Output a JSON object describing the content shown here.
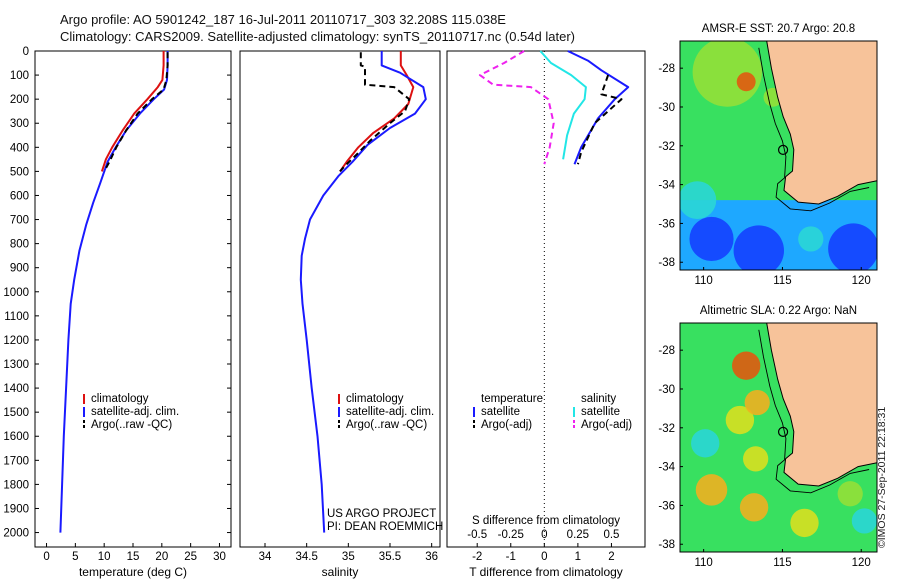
{
  "header": {
    "line1": "Argo profile: AO 5901242_187 16-Jul-2011 20110717_303 32.208S 115.038E",
    "line2": "Climatology: CARS2009. Satellite-adjusted climatology: synTS_20110717.nc (0.54d later)"
  },
  "stamp": "©IMOS 27-Sep-2011 22:18:31",
  "colors": {
    "climatology": "#dd1111",
    "satellite": "#1a1aff",
    "argo": "#000000",
    "salinity_satellite": "#22e6e6",
    "salinity_argo": "#ee22ee",
    "land": "#f7c39a"
  },
  "chart_data": [
    {
      "type": "line",
      "id": "temperature",
      "xlabel": "temperature (deg C)",
      "ylabel": "",
      "xlim": [
        -2,
        32
      ],
      "ylim": [
        2060,
        0
      ],
      "xticks": [
        0,
        5,
        10,
        15,
        20,
        25,
        30
      ],
      "yticks": [
        0,
        100,
        200,
        300,
        400,
        500,
        600,
        700,
        800,
        900,
        1000,
        1100,
        1200,
        1300,
        1400,
        1500,
        1600,
        1700,
        1800,
        1900,
        2000
      ],
      "legend": {
        "position": "lower-middle",
        "entries": [
          "climatology",
          "satellite-adj. clim.",
          "Argo(..raw -QC)"
        ]
      },
      "series": [
        {
          "name": "climatology",
          "color": "#dd1111",
          "dash": "solid",
          "points": [
            [
              20.3,
              0
            ],
            [
              20.3,
              60
            ],
            [
              20.1,
              120
            ],
            [
              19.3,
              150
            ],
            [
              17.5,
              200
            ],
            [
              15.2,
              260
            ],
            [
              13.2,
              330
            ],
            [
              11.4,
              400
            ],
            [
              10.3,
              450
            ],
            [
              9.6,
              500
            ]
          ]
        },
        {
          "name": "satellite-adj. clim.",
          "color": "#1a1aff",
          "dash": "solid",
          "points": [
            [
              21.0,
              0
            ],
            [
              21.0,
              60
            ],
            [
              20.9,
              120
            ],
            [
              20.4,
              160
            ],
            [
              18.6,
              200
            ],
            [
              16.2,
              260
            ],
            [
              13.8,
              330
            ],
            [
              12.0,
              400
            ],
            [
              10.6,
              460
            ],
            [
              9.3,
              550
            ],
            [
              8.1,
              630
            ],
            [
              6.9,
              720
            ],
            [
              5.7,
              830
            ],
            [
              4.8,
              950
            ],
            [
              4.2,
              1050
            ],
            [
              3.8,
              1200
            ],
            [
              3.4,
              1400
            ],
            [
              3.0,
              1600
            ],
            [
              2.7,
              1800
            ],
            [
              2.4,
              2000
            ]
          ]
        },
        {
          "name": "Argo(..raw -QC)",
          "color": "#000000",
          "dash": "dashed",
          "points": [
            [
              21.0,
              5
            ],
            [
              21.0,
              60
            ],
            [
              20.8,
              120
            ],
            [
              20.3,
              160
            ],
            [
              18.3,
              200
            ],
            [
              15.8,
              260
            ],
            [
              13.8,
              330
            ],
            [
              12.1,
              400
            ],
            [
              10.9,
              460
            ],
            [
              10.0,
              500
            ]
          ]
        }
      ],
      "annotations": []
    },
    {
      "type": "line",
      "id": "salinity",
      "xlabel": "salinity",
      "ylabel": "",
      "xlim": [
        33.7,
        36.1
      ],
      "ylim": [
        2060,
        0
      ],
      "xticks": [
        34,
        34.5,
        35,
        35.5,
        36
      ],
      "yticks": [],
      "legend": {
        "position": "lower-right",
        "entries": [
          "climatology",
          "satellite-adj. clim.",
          "Argo(..raw -QC)"
        ]
      },
      "series": [
        {
          "name": "climatology",
          "color": "#dd1111",
          "dash": "solid",
          "points": [
            [
              35.63,
              0
            ],
            [
              35.63,
              60
            ],
            [
              35.7,
              100
            ],
            [
              35.78,
              150
            ],
            [
              35.72,
              220
            ],
            [
              35.55,
              280
            ],
            [
              35.3,
              340
            ],
            [
              35.12,
              400
            ],
            [
              34.98,
              460
            ],
            [
              34.9,
              500
            ]
          ]
        },
        {
          "name": "satellite-adj. clim.",
          "color": "#1a1aff",
          "dash": "solid",
          "points": [
            [
              35.4,
              0
            ],
            [
              35.4,
              60
            ],
            [
              35.62,
              90
            ],
            [
              35.9,
              150
            ],
            [
              35.93,
              200
            ],
            [
              35.8,
              260
            ],
            [
              35.5,
              320
            ],
            [
              35.23,
              390
            ],
            [
              35.05,
              460
            ],
            [
              34.88,
              520
            ],
            [
              34.7,
              600
            ],
            [
              34.54,
              700
            ],
            [
              34.48,
              780
            ],
            [
              34.44,
              850
            ],
            [
              34.43,
              950
            ],
            [
              34.45,
              1050
            ],
            [
              34.5,
              1200
            ],
            [
              34.56,
              1400
            ],
            [
              34.63,
              1600
            ],
            [
              34.68,
              1800
            ],
            [
              34.71,
              2000
            ]
          ]
        },
        {
          "name": "Argo(..raw -QC)",
          "color": "#000000",
          "dash": "dashed",
          "points": [
            [
              35.15,
              5
            ],
            [
              35.15,
              60
            ],
            [
              35.2,
              65
            ],
            [
              35.2,
              140
            ],
            [
              35.55,
              150
            ],
            [
              35.73,
              200
            ],
            [
              35.68,
              250
            ],
            [
              35.5,
              300
            ],
            [
              35.27,
              370
            ],
            [
              35.1,
              430
            ],
            [
              34.95,
              480
            ],
            [
              34.9,
              500
            ]
          ]
        }
      ],
      "annotations": [
        "US ARGO PROJECT",
        "PI: DEAN ROEMMICH"
      ]
    },
    {
      "type": "line",
      "id": "difference",
      "xlabel": "T difference from climatology",
      "xlabel_top": "S difference from climatology",
      "ylabel": "",
      "xlim": [
        -2.9,
        3.0
      ],
      "ylim": [
        2060,
        0
      ],
      "xticks": [
        -2,
        -1,
        0,
        1,
        2
      ],
      "xticks_s": [
        "-0.5",
        "-0.25",
        "0",
        "0.25",
        "0.5"
      ],
      "xticks_s_values": [
        -0.5,
        -0.25,
        0,
        0.25,
        0.5
      ],
      "yticks": [],
      "legend": {
        "position": "lower-middle",
        "headers": [
          "temperature",
          "salinity"
        ],
        "entries": [
          "satellite",
          "Argo(-adj)",
          "satellite",
          "Argo(-adj)"
        ]
      },
      "series": [
        {
          "name": "satellite",
          "group": "temperature",
          "color": "#1a1aff",
          "dash": "solid",
          "unit": "T",
          "points": [
            [
              0.7,
              0
            ],
            [
              1.3,
              40
            ],
            [
              1.7,
              80
            ],
            [
              2.5,
              150
            ],
            [
              2.1,
              200
            ],
            [
              1.6,
              280
            ],
            [
              1.1,
              400
            ],
            [
              0.9,
              470
            ]
          ]
        },
        {
          "name": "Argo(-adj)",
          "group": "temperature",
          "color": "#000000",
          "dash": "dashed",
          "unit": "T",
          "points": [
            [
              1.9,
              100
            ],
            [
              1.7,
              180
            ],
            [
              2.3,
              200
            ],
            [
              1.5,
              300
            ],
            [
              1.3,
              360
            ],
            [
              1.1,
              420
            ],
            [
              1.0,
              470
            ]
          ]
        },
        {
          "name": "satellite",
          "group": "salinity",
          "color": "#22e6e6",
          "dash": "solid",
          "unit": "S",
          "points": [
            [
              -0.03,
              0
            ],
            [
              0.05,
              50
            ],
            [
              0.2,
              100
            ],
            [
              0.31,
              150
            ],
            [
              0.3,
              200
            ],
            [
              0.22,
              260
            ],
            [
              0.17,
              350
            ],
            [
              0.14,
              450
            ]
          ]
        },
        {
          "name": "Argo(-adj)",
          "group": "salinity",
          "color": "#ee22ee",
          "dash": "dashed",
          "unit": "S",
          "points": [
            [
              -0.15,
              0
            ],
            [
              -0.3,
              50
            ],
            [
              -0.48,
              100
            ],
            [
              -0.38,
              140
            ],
            [
              -0.1,
              150
            ],
            [
              0.03,
              200
            ],
            [
              0.07,
              300
            ],
            [
              0.04,
              400
            ],
            [
              0.0,
              470
            ]
          ]
        }
      ],
      "annotations": []
    },
    {
      "type": "heatmap",
      "id": "sst-map",
      "title": "AMSR-E SST: 20.7 Argo: 20.8",
      "xlim": [
        108.5,
        121
      ],
      "ylim": [
        -38.4,
        -26.6
      ],
      "xticks": [
        110,
        115,
        120
      ],
      "yticks": [
        -28,
        -30,
        -32,
        -34,
        -36,
        -38
      ],
      "colormap": [
        "#1440ff",
        "#1ea8ff",
        "#2ad6d6",
        "#38e060",
        "#94e038",
        "#d8e020",
        "#f0b020",
        "#e05a10"
      ],
      "marker": {
        "lon": 115.04,
        "lat": -32.21
      },
      "coast": [
        [
          114.0,
          -26.6
        ],
        [
          114.3,
          -28.0
        ],
        [
          114.7,
          -29.5
        ],
        [
          115.05,
          -30.5
        ],
        [
          115.5,
          -31.4
        ],
        [
          115.72,
          -32.2
        ],
        [
          115.64,
          -33.3
        ],
        [
          115.2,
          -33.6
        ],
        [
          115.1,
          -34.3
        ],
        [
          116.0,
          -34.9
        ],
        [
          117.3,
          -35.0
        ],
        [
          118.5,
          -34.6
        ],
        [
          119.8,
          -34.0
        ],
        [
          121,
          -33.8
        ]
      ],
      "blobs": [
        {
          "lon": 111.5,
          "lat": -28.2,
          "v": 0.62,
          "r": 2.2
        },
        {
          "lon": 112.7,
          "lat": -28.7,
          "v": 0.95,
          "r": 0.6
        },
        {
          "lon": 111.0,
          "lat": -32.0,
          "v": 0.42,
          "r": 1.6
        },
        {
          "lon": 109.6,
          "lat": -34.8,
          "v": 0.22,
          "r": 1.2
        },
        {
          "lon": 110.5,
          "lat": -36.8,
          "v": 0.02,
          "r": 1.4
        },
        {
          "lon": 113.5,
          "lat": -37.4,
          "v": 0.05,
          "r": 1.6
        },
        {
          "lon": 116.8,
          "lat": -36.8,
          "v": 0.32,
          "r": 0.8
        },
        {
          "lon": 119.5,
          "lat": -37.3,
          "v": 0.0,
          "r": 1.6
        },
        {
          "lon": 114.4,
          "lat": -29.5,
          "v": 0.62,
          "r": 0.6
        }
      ]
    },
    {
      "type": "heatmap",
      "id": "sla-map",
      "title": "Altimetric SLA: 0.22 Argo: NaN",
      "xlim": [
        108.5,
        121
      ],
      "ylim": [
        -38.4,
        -26.6
      ],
      "xticks": [
        110,
        115,
        120
      ],
      "yticks": [
        -28,
        -30,
        -32,
        -34,
        -36,
        -38
      ],
      "colormap": [
        "#1440ff",
        "#1ea8ff",
        "#2ad6d6",
        "#38e060",
        "#94e038",
        "#d8e020",
        "#f0b020",
        "#e05a10"
      ],
      "marker": {
        "lon": 115.04,
        "lat": -32.21
      },
      "coast": [
        [
          114.0,
          -26.6
        ],
        [
          114.3,
          -28.0
        ],
        [
          114.7,
          -29.5
        ],
        [
          115.05,
          -30.5
        ],
        [
          115.5,
          -31.4
        ],
        [
          115.72,
          -32.2
        ],
        [
          115.64,
          -33.3
        ],
        [
          115.2,
          -33.6
        ],
        [
          115.1,
          -34.3
        ],
        [
          116.0,
          -34.9
        ],
        [
          117.3,
          -35.0
        ],
        [
          118.5,
          -34.6
        ],
        [
          119.8,
          -34.0
        ],
        [
          121,
          -33.8
        ]
      ],
      "blobs": [
        {
          "lon": 110.0,
          "lat": -28.2,
          "v": 0.38,
          "r": 0.9
        },
        {
          "lon": 112.7,
          "lat": -28.8,
          "v": 0.95,
          "r": 0.9
        },
        {
          "lon": 110.1,
          "lat": -32.8,
          "v": 0.35,
          "r": 0.9
        },
        {
          "lon": 112.3,
          "lat": -31.6,
          "v": 0.78,
          "r": 0.9
        },
        {
          "lon": 113.4,
          "lat": -30.7,
          "v": 0.84,
          "r": 0.8
        },
        {
          "lon": 110.5,
          "lat": -35.2,
          "v": 0.8,
          "r": 1.0
        },
        {
          "lon": 113.3,
          "lat": -33.6,
          "v": 0.65,
          "r": 0.8
        },
        {
          "lon": 113.2,
          "lat": -36.1,
          "v": 0.82,
          "r": 0.9
        },
        {
          "lon": 116.4,
          "lat": -36.9,
          "v": 0.68,
          "r": 0.9
        },
        {
          "lon": 119.3,
          "lat": -35.4,
          "v": 0.62,
          "r": 0.8
        },
        {
          "lon": 120.2,
          "lat": -36.8,
          "v": 0.3,
          "r": 0.8
        }
      ]
    }
  ]
}
